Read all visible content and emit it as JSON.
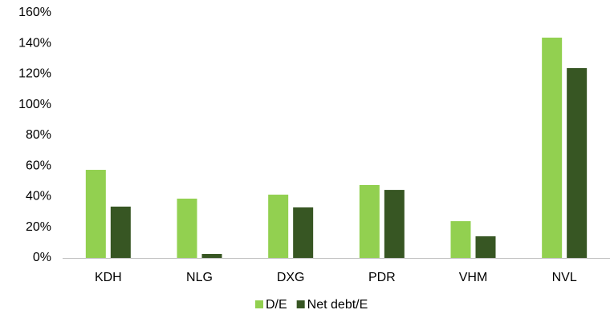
{
  "chart_data": {
    "type": "bar",
    "categories": [
      "KDH",
      "NLG",
      "DXG",
      "PDR",
      "VHM",
      "NVL"
    ],
    "series": [
      {
        "name": "D/E",
        "color": "#92d050",
        "values": [
          57.5,
          38.7,
          41.3,
          47.6,
          24,
          143.8
        ]
      },
      {
        "name": "Net debt/E",
        "color": "#375623",
        "values": [
          33.5,
          2.6,
          33,
          44.4,
          14.1,
          123.9
        ]
      }
    ],
    "ylim": [
      0,
      160
    ],
    "yticks": [
      {
        "value": 0,
        "label": "0%"
      },
      {
        "value": 20,
        "label": "20%"
      },
      {
        "value": 40,
        "label": "40%"
      },
      {
        "value": 60,
        "label": "60%"
      },
      {
        "value": 80,
        "label": "80%"
      },
      {
        "value": 100,
        "label": "100%"
      },
      {
        "value": 120,
        "label": "120%"
      },
      {
        "value": 140,
        "label": "140%"
      },
      {
        "value": 160,
        "label": "160%"
      }
    ],
    "grid": false,
    "legend": "bottom"
  }
}
